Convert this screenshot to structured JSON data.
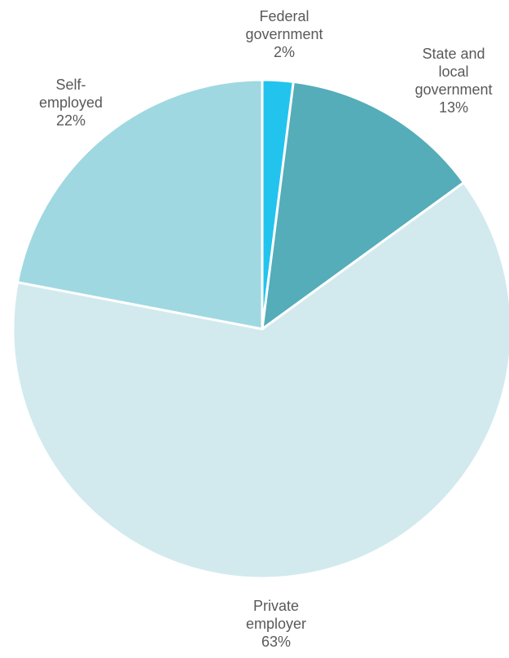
{
  "chart_data": {
    "type": "pie",
    "title": "",
    "start": "top, clockwise",
    "slices": [
      {
        "label_lines": [
          "Federal",
          "government"
        ],
        "value": 2,
        "value_label": "2%",
        "color": "#22C4EE"
      },
      {
        "label_lines": [
          "State and",
          "local",
          "government"
        ],
        "value": 13,
        "value_label": "13%",
        "color": "#54ADB8"
      },
      {
        "label_lines": [
          "Private",
          "employer"
        ],
        "value": 63,
        "value_label": "63%",
        "color": "#D2EAEE"
      },
      {
        "label_lines": [
          "Self-",
          "employed"
        ],
        "value": 22,
        "value_label": "22%",
        "color": "#9FD8E1"
      }
    ],
    "slice_border_color": "#FFFFFF",
    "label_color": "#595959",
    "legend": "none"
  }
}
